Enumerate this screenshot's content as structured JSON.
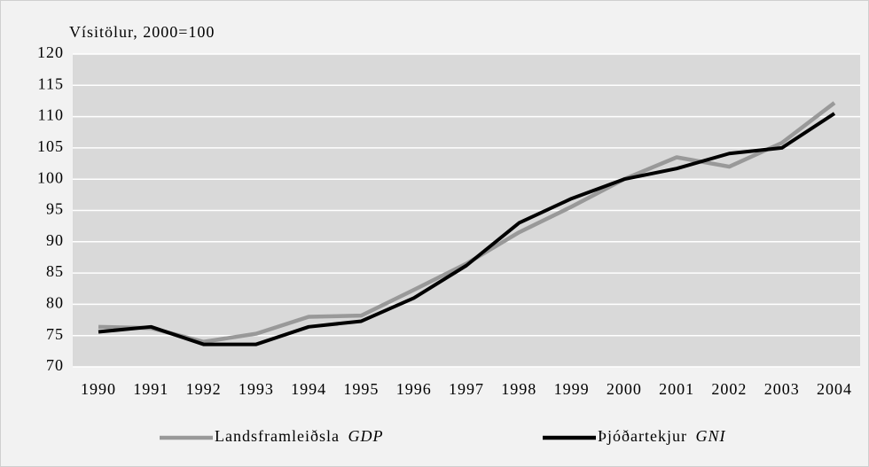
{
  "chart_data": {
    "type": "line",
    "ylabel": "Vísitölur, 2000=100",
    "categories": [
      "1990",
      "1991",
      "1992",
      "1993",
      "1994",
      "1995",
      "1996",
      "1997",
      "1998",
      "1999",
      "2000",
      "2001",
      "2002",
      "2003",
      "2004"
    ],
    "series": [
      {
        "name": "Landsframleiðsla GDP",
        "color": "#999999",
        "values": [
          76.4,
          76.2,
          74,
          75.3,
          78,
          78.2,
          82.3,
          86.5,
          91.5,
          95.6,
          100,
          103.5,
          102,
          105.8,
          112.2
        ]
      },
      {
        "name": "Þjóðartekjur GNI",
        "color": "#000000",
        "values": [
          75.6,
          76.4,
          73.6,
          73.6,
          76.4,
          77.3,
          81,
          86.2,
          93,
          96.9,
          100,
          101.7,
          104.1,
          105,
          110.5
        ]
      }
    ],
    "ylim": [
      70,
      120
    ],
    "yticks": [
      70,
      75,
      80,
      85,
      90,
      95,
      100,
      105,
      110,
      115,
      120
    ],
    "grid": true,
    "legend": "bottom"
  }
}
